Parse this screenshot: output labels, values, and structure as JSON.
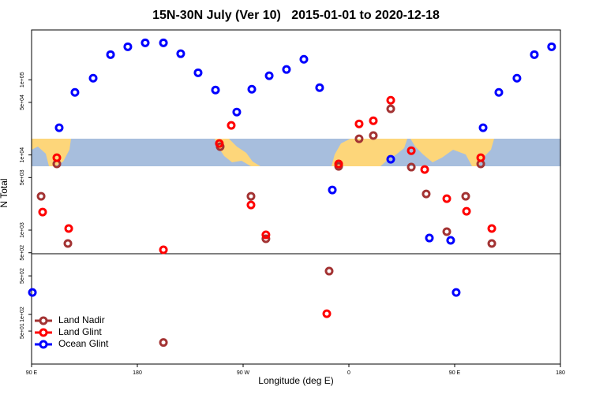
{
  "chart_data": {
    "type": "scatter",
    "title": "15N-30N July (Ver 10)   2015-01-01 to 2020-12-18",
    "xlabel": "Longitude (deg E)",
    "ylabel": "N Total",
    "xlim": [
      90,
      540
    ],
    "xticks": [
      {
        "value": 90,
        "label": "90 E"
      },
      {
        "value": 180,
        "label": "180"
      },
      {
        "value": 270,
        "label": "90 W"
      },
      {
        "value": 360,
        "label": "0"
      },
      {
        "value": 450,
        "label": "90 E"
      },
      {
        "value": 540,
        "label": "180"
      }
    ],
    "ylim": [
      485,
      460000
    ],
    "yticks": [
      {
        "value": 500,
        "label": "5e+02"
      },
      {
        "value": 1000,
        "label": "1e+03"
      },
      {
        "value": 5000,
        "label": "5e+03"
      },
      {
        "value": 10000,
        "label": "1e+04"
      },
      {
        "value": 50000,
        "label": "5e+04"
      },
      {
        "value": 100000,
        "label": "1e+05"
      }
    ],
    "y2lim": [
      12.6,
      1260
    ],
    "y2ticks": [
      {
        "value": 50,
        "label": "5e+01"
      },
      {
        "value": 100,
        "label": "1e+02"
      },
      {
        "value": 500,
        "label": "5e+02"
      }
    ],
    "log_scale": true,
    "legend": "bottom-left",
    "series": [
      {
        "name": "Land Nadir",
        "color": "#a33333",
        "x": [
          98.1,
          111.5,
          120.9,
          250.5,
          276.7,
          289.4,
          351.3,
          368.7,
          380.8,
          395.6,
          413.1,
          425.8,
          443.3,
          459.4,
          472.2,
          481.6
        ],
        "values": [
          2820,
          7590,
          664,
          12900,
          2820,
          767,
          7050,
          16400,
          18100,
          41000,
          6890,
          3030,
          953,
          2820,
          7590,
          664
        ]
      },
      {
        "name": "Land Glint",
        "color": "#ff0000",
        "x": [
          99.4,
          111.5,
          121.6,
          202.2,
          249.8,
          259.9,
          276.7,
          289.4,
          351.3,
          368.7,
          380.8,
          395.6,
          413.1,
          424.5,
          443.3,
          460.1,
          472.2,
          481.6
        ],
        "values": [
          1740,
          9180,
          1050,
          547,
          14200,
          24700,
          2160,
          865,
          7590,
          25900,
          28500,
          53400,
          11400,
          6400,
          2620,
          1780,
          9180,
          1050
        ]
      },
      {
        "name": "Ocean Glint",
        "color": "#0000ff",
        "x": [
          113.5,
          126.9,
          142.4,
          157.2,
          171.9,
          186.7,
          202.2,
          216.9,
          231.7,
          246.5,
          264.6,
          277.4,
          292.2,
          306.9,
          321.7,
          335.1,
          345.9,
          395.6,
          428.5,
          446.6,
          474.2,
          487.6,
          503.0,
          517.8,
          532.5
        ],
        "values": [
          23000,
          68000,
          105000,
          216000,
          275000,
          310000,
          310000,
          222000,
          124000,
          73100,
          37200,
          74800,
          113000,
          137000,
          187000,
          78500,
          3420,
          8750,
          785,
          731,
          23000,
          68000,
          105000,
          216000,
          275000
        ]
      },
      {
        "color": "#a33333",
        "axis": "y2",
        "x": [
          202.2,
          343.2
        ],
        "values": [
          31,
          610
        ]
      },
      {
        "color": "#ff0000",
        "axis": "y2",
        "x": [
          341.2
        ],
        "values": [
          103
        ]
      },
      {
        "color": "#0000ff",
        "axis": "y2",
        "x": [
          90.7,
          451.3
        ],
        "values": [
          250,
          250
        ]
      }
    ]
  }
}
